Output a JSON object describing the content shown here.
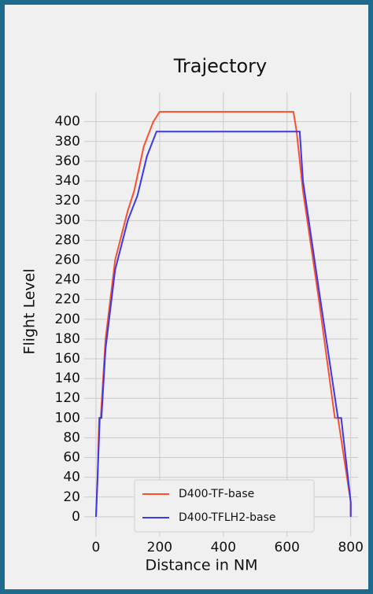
{
  "chart_data": {
    "type": "line",
    "title": "Trajectory",
    "xlabel": "Distance in NM",
    "ylabel": "Flight Level",
    "xlim": [
      -37,
      823
    ],
    "ylim": [
      -20,
      430
    ],
    "xticks": [
      0,
      200,
      400,
      600,
      800
    ],
    "yticks": [
      0,
      20,
      40,
      60,
      80,
      100,
      120,
      140,
      160,
      180,
      200,
      220,
      240,
      260,
      280,
      300,
      320,
      340,
      360,
      380,
      400
    ],
    "grid": true,
    "legend": "lower center",
    "series": [
      {
        "name": "D400-TF-base",
        "color": "#fc4f30",
        "x": [
          0,
          5,
          10,
          15,
          30,
          60,
          100,
          120,
          150,
          180,
          200,
          620,
          630,
          650,
          700,
          750,
          760,
          800,
          800
        ],
        "values": [
          0,
          40,
          100,
          100,
          180,
          260,
          310,
          330,
          375,
          400,
          410,
          410,
          390,
          330,
          220,
          100,
          100,
          15,
          0
        ]
      },
      {
        "name": "D400-TFLH2-base",
        "color": "#3a3ae8",
        "x": [
          0,
          5,
          12,
          17,
          30,
          60,
          100,
          130,
          160,
          190,
          200,
          640,
          650,
          700,
          760,
          770,
          800,
          800
        ],
        "values": [
          0,
          40,
          100,
          100,
          170,
          250,
          300,
          325,
          365,
          390,
          390,
          390,
          340,
          230,
          100,
          100,
          15,
          0
        ]
      }
    ]
  }
}
